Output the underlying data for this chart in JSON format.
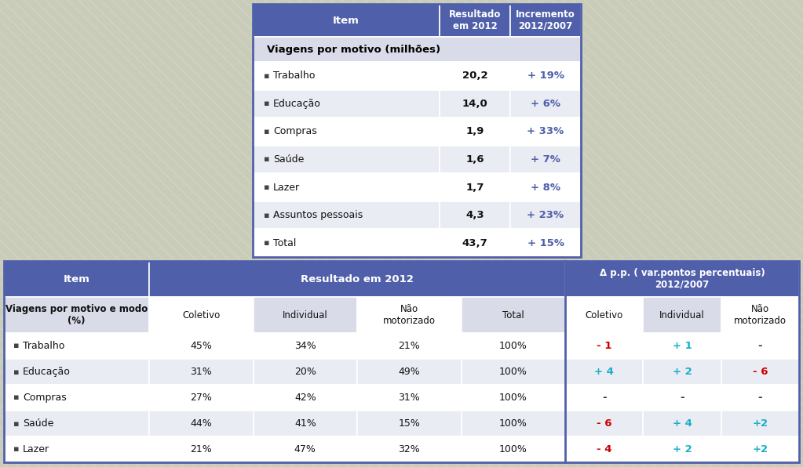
{
  "bg_color": "#c8ccb8",
  "bg_line_color": "#d4d8c4",
  "table1": {
    "header_bg": "#4f5faa",
    "header_color": "#ffffff",
    "subheader_bg": "#d9dce8",
    "row_bg_alt": "#eaecf4",
    "row_bg_norm": "#ffffff",
    "col_item_label": "Item",
    "col_result_label": "Resultado\nem 2012",
    "col_increment_label": "Incremento\n2012/2007",
    "section_label": "Viagens por motivo (milhões)",
    "rows": [
      {
        "label": "Trabalho",
        "result": "20,2",
        "increment": "+ 19%"
      },
      {
        "label": "Educação",
        "result": "14,0",
        "increment": "+ 6%"
      },
      {
        "label": "Compras",
        "result": "1,9",
        "increment": "+ 33%"
      },
      {
        "label": "Saúde",
        "result": "1,6",
        "increment": "+ 7%"
      },
      {
        "label": "Lazer",
        "result": "1,7",
        "increment": "+ 8%"
      },
      {
        "label": "Assuntos pessoais",
        "result": "4,3",
        "increment": "+ 23%"
      },
      {
        "label": "Total",
        "result": "43,7",
        "increment": "+ 15%"
      }
    ],
    "increment_color": "#4f5faa"
  },
  "table2": {
    "header_bg": "#4f5faa",
    "header_color": "#ffffff",
    "subheader_bg": "#d9dce8",
    "row_bg_alt": "#eaecf4",
    "row_bg_norm": "#ffffff",
    "col1_label": "Item",
    "col_group1_label": "Resultado em 2012",
    "col_group2_label": "Δ p.p. ( var.pontos percentuais)\n2012/2007",
    "subheader_labels": [
      "Coletivo",
      "Individual",
      "Não\nmotorizado",
      "Total",
      "Coletivo",
      "Individual",
      "Não\nmotorizado"
    ],
    "section_label": "Viagens por motivo e modo\n(%)",
    "rows": [
      {
        "label": "Trabalho",
        "c1": "45%",
        "c2": "34%",
        "c3": "21%",
        "c4": "100%",
        "d1": "- 1",
        "d2": "+ 1",
        "d3": "-",
        "d1c": "red",
        "d2c": "cyan",
        "d3c": "black"
      },
      {
        "label": "Educação",
        "c1": "31%",
        "c2": "20%",
        "c3": "49%",
        "c4": "100%",
        "d1": "+ 4",
        "d2": "+ 2",
        "d3": "- 6",
        "d1c": "cyan",
        "d2c": "cyan",
        "d3c": "red"
      },
      {
        "label": "Compras",
        "c1": "27%",
        "c2": "42%",
        "c3": "31%",
        "c4": "100%",
        "d1": "-",
        "d2": "-",
        "d3": "-",
        "d1c": "black",
        "d2c": "black",
        "d3c": "black"
      },
      {
        "label": "Saúde",
        "c1": "44%",
        "c2": "41%",
        "c3": "15%",
        "c4": "100%",
        "d1": "- 6",
        "d2": "+ 4",
        "d3": "+2",
        "d1c": "red",
        "d2c": "cyan",
        "d3c": "cyan"
      },
      {
        "label": "Lazer",
        "c1": "21%",
        "c2": "47%",
        "c3": "32%",
        "c4": "100%",
        "d1": "- 4",
        "d2": "+ 2",
        "d3": "+2",
        "d1c": "red",
        "d2c": "cyan",
        "d3c": "cyan"
      }
    ]
  },
  "color_map": {
    "red": "#cc0000",
    "cyan": "#1ab0c8",
    "black": "#333333"
  }
}
